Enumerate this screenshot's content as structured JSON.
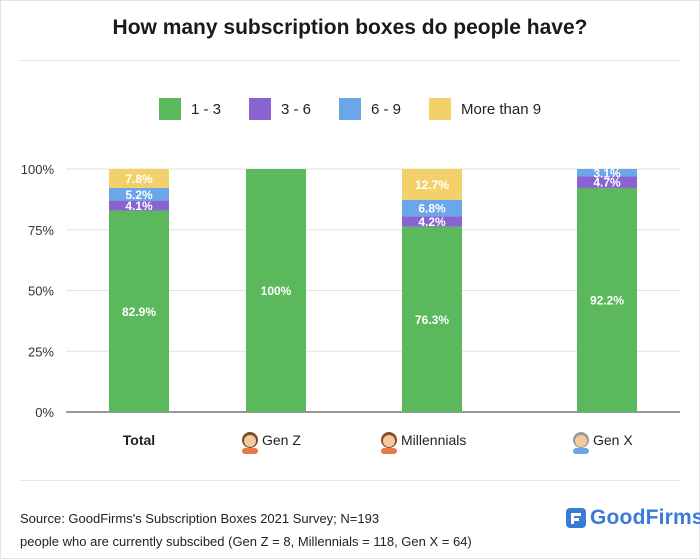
{
  "title": "How many subscription boxes do people have?",
  "legend": [
    {
      "label": "1 - 3",
      "color": "#5cb85c"
    },
    {
      "label": "3 - 6",
      "color": "#8a63d2"
    },
    {
      "label": "6 - 9",
      "color": "#6aa6e8"
    },
    {
      "label": "More than 9",
      "color": "#f2d16b"
    }
  ],
  "source": {
    "line1": "Source: GoodFirms's Subscription Boxes 2021 Survey; N=193",
    "line2": "people who are currently subscibed (Gen Z = 8, Millennials = 118, Gen X = 64)"
  },
  "logo": {
    "text": "GoodFirms"
  },
  "chart_data": {
    "type": "bar",
    "stacked": true,
    "categories": [
      "Total",
      "Gen Z",
      "Millennials",
      "Gen X"
    ],
    "category_icons": [
      "",
      "person-icon",
      "person-icon",
      "person-icon"
    ],
    "series": [
      {
        "name": "1 - 3",
        "values": [
          82.9,
          100,
          76.3,
          92.2
        ],
        "labels": [
          "82.9%",
          "100%",
          "76.3%",
          "92.2%"
        ],
        "color": "#5cb85c"
      },
      {
        "name": "3 - 6",
        "values": [
          4.1,
          0,
          4.2,
          4.7
        ],
        "labels": [
          "4.1%",
          "",
          "4.2%",
          "4.7%"
        ],
        "color": "#8a63d2"
      },
      {
        "name": "6 - 9",
        "values": [
          5.2,
          0,
          6.8,
          3.1
        ],
        "labels": [
          "5.2%",
          "",
          "6.8%",
          "3.1%"
        ],
        "color": "#6aa6e8"
      },
      {
        "name": "More than 9",
        "values": [
          7.8,
          0,
          12.7,
          0
        ],
        "labels": [
          "7.8%",
          "",
          "12.7%",
          ""
        ],
        "color": "#f2d16b"
      }
    ],
    "yticks": [
      "0%",
      "25%",
      "50%",
      "75%",
      "100%"
    ],
    "ytick_values": [
      0,
      25,
      50,
      75,
      100
    ],
    "ylim": [
      0,
      100
    ],
    "grid": true,
    "legend_position": "top-center"
  }
}
